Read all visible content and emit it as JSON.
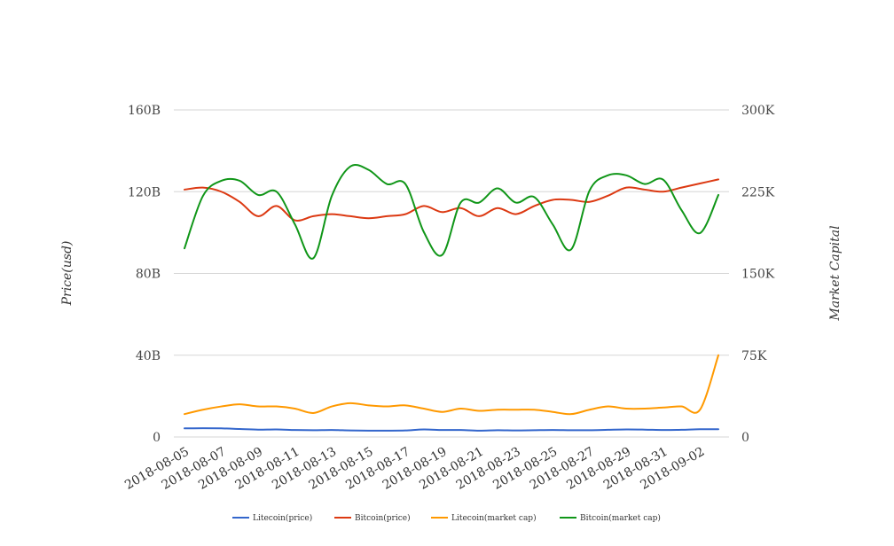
{
  "chart_data": {
    "type": "line",
    "x": [
      "2018-08-05",
      "2018-08-06",
      "2018-08-07",
      "2018-08-08",
      "2018-08-09",
      "2018-08-10",
      "2018-08-11",
      "2018-08-12",
      "2018-08-13",
      "2018-08-14",
      "2018-08-15",
      "2018-08-16",
      "2018-08-17",
      "2018-08-18",
      "2018-08-19",
      "2018-08-20",
      "2018-08-21",
      "2018-08-22",
      "2018-08-23",
      "2018-08-24",
      "2018-08-25",
      "2018-08-26",
      "2018-08-27",
      "2018-08-28",
      "2018-08-29",
      "2018-08-30",
      "2018-08-31",
      "2018-09-01",
      "2018-09-02",
      "2018-09-03"
    ],
    "x_tick_labels": [
      "2018-08-05",
      "2018-08-07",
      "2018-08-09",
      "2018-08-11",
      "2018-08-13",
      "2018-08-15",
      "2018-08-17",
      "2018-08-19",
      "2018-08-21",
      "2018-08-23",
      "2018-08-25",
      "2018-08-27",
      "2018-08-29",
      "2018-08-31",
      "2018-09-02"
    ],
    "y_left": {
      "label": "Price(usd)",
      "ticks": [
        "0",
        "40B",
        "80B",
        "120B",
        "160B"
      ],
      "ylim": [
        0,
        160
      ]
    },
    "y_right": {
      "label": "Market Capital",
      "ticks": [
        "0",
        "75K",
        "150K",
        "225K",
        "300K"
      ],
      "ylim": [
        0,
        300
      ]
    },
    "grid": true,
    "legend_position": "bottom",
    "series": [
      {
        "name": "Litecoin(price)",
        "color": "#3366cc",
        "axis": "left",
        "values": [
          4.2,
          4.3,
          4.2,
          3.9,
          3.6,
          3.7,
          3.4,
          3.3,
          3.4,
          3.2,
          3.1,
          3.1,
          3.2,
          3.7,
          3.4,
          3.4,
          3.1,
          3.3,
          3.2,
          3.3,
          3.4,
          3.3,
          3.3,
          3.5,
          3.7,
          3.6,
          3.4,
          3.5,
          3.8,
          3.8
        ]
      },
      {
        "name": "Bitcoin(price)",
        "color": "#dc3912",
        "axis": "left",
        "values": [
          121,
          122,
          120,
          115,
          108,
          113,
          106,
          108,
          109,
          108,
          107,
          108,
          109,
          113,
          110,
          112,
          108,
          112,
          109,
          113,
          116,
          116,
          115,
          118,
          122,
          121,
          120,
          122,
          124,
          126
        ]
      },
      {
        "name": "Litecoin(market cap)",
        "color": "#ff9900",
        "axis": "right",
        "values": [
          21,
          25,
          28,
          30,
          28,
          28,
          26,
          22,
          28,
          31,
          29,
          28,
          29,
          26,
          23,
          26,
          24,
          25,
          25,
          25,
          23,
          21,
          25,
          28,
          26,
          26,
          27,
          28,
          25,
          75
        ]
      },
      {
        "name": "Bitcoin(market cap)",
        "color": "#109618",
        "axis": "right",
        "values": [
          173,
          221,
          235,
          235,
          222,
          225,
          195,
          164,
          221,
          248,
          245,
          232,
          232,
          188,
          167,
          215,
          215,
          228,
          215,
          220,
          195,
          172,
          226,
          240,
          240,
          232,
          236,
          208,
          187,
          222
        ]
      }
    ]
  }
}
